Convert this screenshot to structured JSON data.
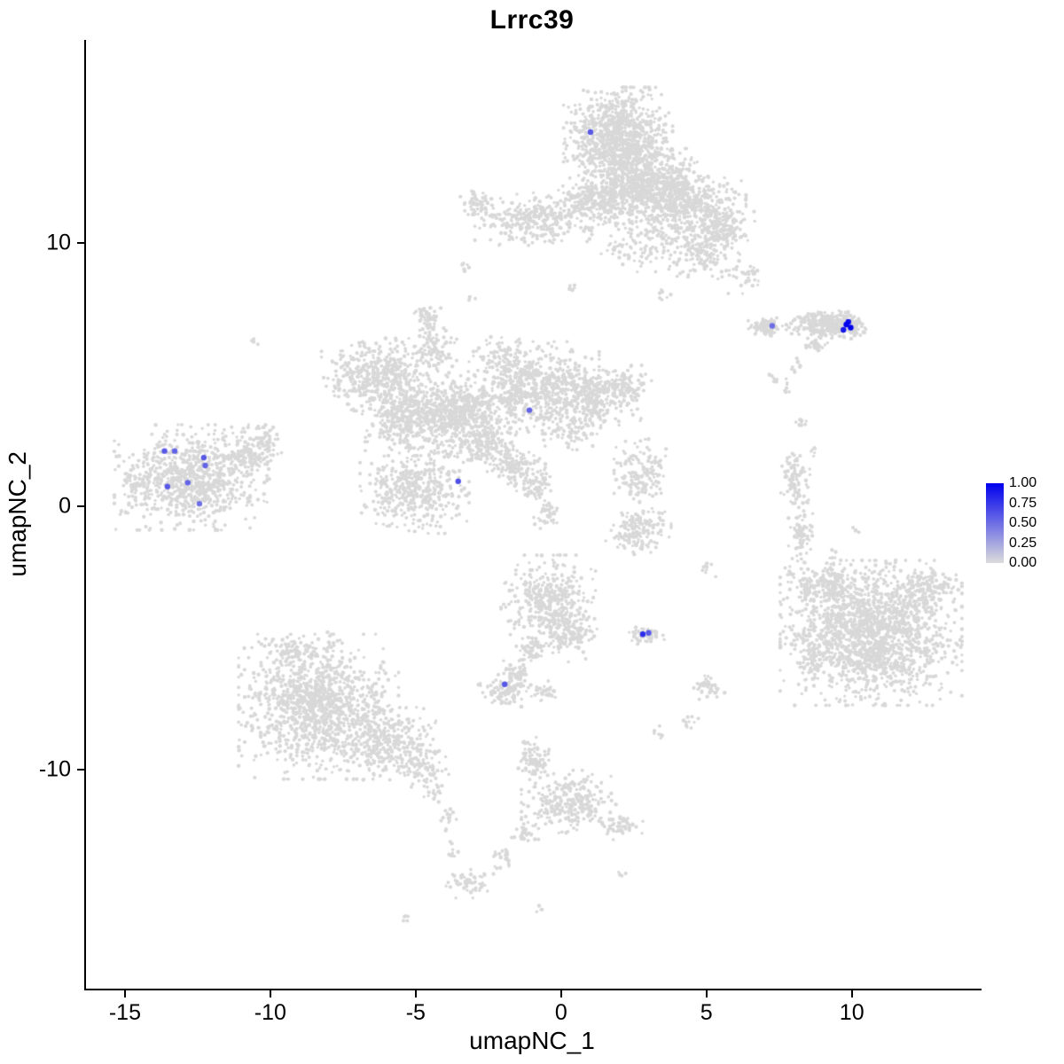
{
  "chart_data": {
    "type": "scatter",
    "title": "Lrrc39",
    "xlabel": "umapNC_1",
    "ylabel": "umapNC_2",
    "xlim": [
      -16.4,
      14.4
    ],
    "ylim": [
      -18.3,
      17.7
    ],
    "x_ticks": [
      -15,
      -10,
      -5,
      0,
      5,
      10
    ],
    "y_ticks": [
      -10,
      0,
      10
    ],
    "grid": false,
    "background_point_color": "#D8D8D8",
    "legend": {
      "position": "right",
      "ticks": [
        "1.00",
        "0.75",
        "0.50",
        "0.25",
        "0.00"
      ],
      "high_color": "#0000EE",
      "low_color": "#DCDCDC"
    },
    "background_density_blobs": {
      "format": [
        "x",
        "y",
        "rx",
        "ry",
        "n_points"
      ],
      "blobs": [
        [
          1.9,
          13.9,
          1.5,
          1.6,
          1000
        ],
        [
          3.0,
          12.2,
          1.6,
          1.1,
          550
        ],
        [
          4.3,
          11.3,
          1.6,
          1.2,
          500
        ],
        [
          -0.9,
          10.9,
          1.7,
          0.8,
          320
        ],
        [
          1.2,
          11.6,
          1.2,
          0.9,
          280
        ],
        [
          4.6,
          9.6,
          0.9,
          0.8,
          140
        ],
        [
          5.6,
          10.4,
          0.8,
          0.7,
          110
        ],
        [
          -2.9,
          11.4,
          0.5,
          0.5,
          60
        ],
        [
          2.5,
          9.9,
          1.2,
          0.8,
          90
        ],
        [
          6.3,
          8.7,
          0.5,
          0.5,
          35
        ],
        [
          -3.4,
          9.1,
          0.2,
          0.2,
          6
        ],
        [
          -3.2,
          7.9,
          0.15,
          0.15,
          4
        ],
        [
          0.3,
          8.3,
          0.2,
          0.2,
          6
        ],
        [
          3.4,
          8.0,
          0.25,
          0.25,
          8
        ],
        [
          7.0,
          6.8,
          0.5,
          0.28,
          90
        ],
        [
          9.0,
          6.9,
          1.05,
          0.42,
          260
        ],
        [
          9.9,
          6.8,
          0.5,
          0.35,
          80
        ],
        [
          8.7,
          6.1,
          0.4,
          0.25,
          30
        ],
        [
          8.0,
          5.4,
          0.2,
          0.3,
          10
        ],
        [
          7.7,
          4.6,
          0.15,
          0.3,
          8
        ],
        [
          7.3,
          4.8,
          0.18,
          0.25,
          8
        ],
        [
          8.2,
          3.2,
          0.2,
          0.3,
          8
        ],
        [
          -6.3,
          5.0,
          1.6,
          1.1,
          480
        ],
        [
          -5.3,
          3.3,
          1.3,
          1.1,
          380
        ],
        [
          -3.5,
          3.5,
          1.5,
          1.3,
          520
        ],
        [
          -4.4,
          6.0,
          0.6,
          0.7,
          90
        ],
        [
          -4.6,
          6.9,
          0.25,
          0.35,
          20
        ],
        [
          -4.7,
          7.3,
          0.4,
          0.3,
          30
        ],
        [
          -1.0,
          4.5,
          1.8,
          1.4,
          640
        ],
        [
          1.2,
          4.2,
          1.2,
          0.9,
          280
        ],
        [
          2.3,
          4.6,
          0.6,
          0.6,
          70
        ],
        [
          -5.1,
          0.6,
          1.5,
          1.3,
          430
        ],
        [
          -2.6,
          2.3,
          0.9,
          0.6,
          140
        ],
        [
          -1.6,
          1.5,
          0.8,
          0.55,
          110
        ],
        [
          -0.9,
          0.8,
          0.6,
          0.5,
          70
        ],
        [
          -0.5,
          -0.3,
          0.4,
          0.45,
          40
        ],
        [
          0.3,
          2.9,
          0.8,
          0.6,
          80
        ],
        [
          -2.2,
          5.8,
          0.7,
          0.5,
          60
        ],
        [
          -12.8,
          1.1,
          2.1,
          1.6,
          800
        ],
        [
          -10.8,
          2.0,
          0.9,
          0.8,
          150
        ],
        [
          -10.2,
          2.6,
          0.4,
          0.4,
          40
        ],
        [
          -14.6,
          0.8,
          0.5,
          0.6,
          50
        ],
        [
          -15.1,
          -0.2,
          0.2,
          0.2,
          6
        ],
        [
          -10.6,
          6.3,
          0.15,
          0.15,
          4
        ],
        [
          2.7,
          1.3,
          0.75,
          1.0,
          150
        ],
        [
          2.6,
          -0.9,
          0.9,
          0.8,
          150
        ],
        [
          8.0,
          1.0,
          0.4,
          1.0,
          90
        ],
        [
          8.2,
          -1.0,
          0.35,
          0.9,
          80
        ],
        [
          7.8,
          -2.6,
          0.2,
          0.3,
          10
        ],
        [
          8.6,
          2.1,
          0.2,
          0.2,
          6
        ],
        [
          10.6,
          -4.8,
          2.5,
          2.2,
          1700
        ],
        [
          9.2,
          -2.9,
          0.8,
          0.6,
          120
        ],
        [
          12.4,
          -3.2,
          0.9,
          0.7,
          140
        ],
        [
          8.3,
          -3.0,
          0.3,
          0.5,
          22
        ],
        [
          8.6,
          -5.8,
          0.4,
          0.6,
          40
        ],
        [
          9.3,
          -1.9,
          0.2,
          0.3,
          8
        ],
        [
          10.1,
          -0.9,
          0.15,
          0.2,
          5
        ],
        [
          -0.5,
          -3.6,
          1.3,
          1.4,
          400
        ],
        [
          0.3,
          -4.9,
          0.7,
          0.8,
          120
        ],
        [
          -1.1,
          -5.5,
          0.4,
          0.4,
          50
        ],
        [
          -1.6,
          -6.3,
          0.35,
          0.35,
          40
        ],
        [
          -1.9,
          -7.0,
          0.8,
          0.5,
          100
        ],
        [
          -0.6,
          -7.0,
          0.35,
          0.3,
          30
        ],
        [
          2.85,
          -4.85,
          0.55,
          0.3,
          55
        ],
        [
          -8.4,
          -7.6,
          2.2,
          2.2,
          1200
        ],
        [
          -6.0,
          -9.0,
          1.4,
          1.1,
          300
        ],
        [
          -4.8,
          -9.9,
          0.7,
          0.6,
          80
        ],
        [
          -9.3,
          -5.4,
          1.0,
          0.5,
          80
        ],
        [
          -4.4,
          -10.9,
          0.3,
          0.3,
          14
        ],
        [
          -3.9,
          -11.8,
          0.25,
          0.4,
          16
        ],
        [
          -3.8,
          -13.1,
          0.2,
          0.3,
          10
        ],
        [
          -1.0,
          -9.6,
          0.55,
          0.7,
          80
        ],
        [
          0.2,
          -11.2,
          1.3,
          0.95,
          260
        ],
        [
          2.0,
          -12.1,
          0.6,
          0.45,
          55
        ],
        [
          -1.3,
          -12.4,
          0.4,
          0.4,
          30
        ],
        [
          -2.0,
          -13.3,
          0.35,
          0.35,
          22
        ],
        [
          -3.2,
          -14.3,
          0.65,
          0.45,
          55
        ],
        [
          -5.4,
          -15.6,
          0.2,
          0.2,
          5
        ],
        [
          -0.8,
          -15.3,
          0.15,
          0.15,
          4
        ],
        [
          2.0,
          -13.9,
          0.15,
          0.15,
          4
        ],
        [
          5.0,
          -2.4,
          0.25,
          0.3,
          9
        ],
        [
          5.0,
          -6.9,
          0.45,
          0.4,
          38
        ],
        [
          4.4,
          -8.2,
          0.3,
          0.3,
          10
        ],
        [
          3.3,
          -8.6,
          0.25,
          0.25,
          8
        ]
      ]
    },
    "expression_points": [
      {
        "x": 0.95,
        "y": 14.2,
        "value": 0.6
      },
      {
        "x": 7.2,
        "y": 6.85,
        "value": 0.5
      },
      {
        "x": 9.65,
        "y": 6.7,
        "value": 0.9
      },
      {
        "x": 9.75,
        "y": 6.9,
        "value": 1.0
      },
      {
        "x": 9.9,
        "y": 6.78,
        "value": 1.0
      },
      {
        "x": 9.82,
        "y": 7.0,
        "value": 0.95
      },
      {
        "x": -1.15,
        "y": 3.65,
        "value": 0.55
      },
      {
        "x": -3.6,
        "y": 0.95,
        "value": 0.65
      },
      {
        "x": -13.7,
        "y": 2.1,
        "value": 0.6
      },
      {
        "x": -13.35,
        "y": 2.1,
        "value": 0.55
      },
      {
        "x": -12.35,
        "y": 1.85,
        "value": 0.6
      },
      {
        "x": -12.3,
        "y": 1.55,
        "value": 0.55
      },
      {
        "x": -13.6,
        "y": 0.75,
        "value": 0.6
      },
      {
        "x": -12.9,
        "y": 0.9,
        "value": 0.55
      },
      {
        "x": -12.5,
        "y": 0.1,
        "value": 0.5
      },
      {
        "x": 2.75,
        "y": -4.85,
        "value": 0.8
      },
      {
        "x": 2.95,
        "y": -4.8,
        "value": 0.6
      },
      {
        "x": -2.0,
        "y": -6.75,
        "value": 0.6
      }
    ]
  }
}
